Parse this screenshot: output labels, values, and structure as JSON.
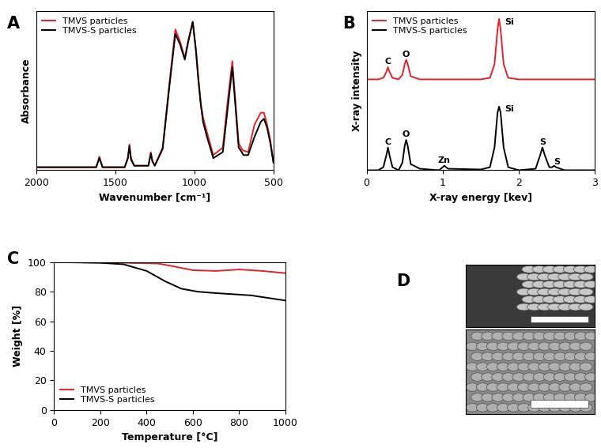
{
  "chart_data": [
    {
      "type": "line",
      "label": "A",
      "x_label": "Wavenumber [cm⁻¹]",
      "y_label": "Absorbance",
      "x": [
        2000,
        1700,
        1620,
        1600,
        1580,
        1440,
        1420,
        1410,
        1400,
        1380,
        1290,
        1275,
        1265,
        1250,
        1200,
        1160,
        1120,
        1090,
        1060,
        1040,
        1010,
        990,
        975,
        960,
        945,
        920,
        880,
        820,
        790,
        760,
        740,
        720,
        700,
        690,
        660,
        620,
        580,
        560,
        540,
        520,
        500
      ],
      "series": [
        {
          "name": "TMVS particles",
          "color": "#e8202a",
          "values": [
            0.02,
            0.02,
            0.02,
            0.09,
            0.02,
            0.02,
            0.08,
            0.17,
            0.08,
            0.03,
            0.03,
            0.12,
            0.06,
            0.03,
            0.15,
            0.55,
            0.93,
            0.85,
            0.74,
            0.85,
            0.98,
            0.8,
            0.62,
            0.45,
            0.35,
            0.25,
            0.1,
            0.15,
            0.45,
            0.72,
            0.45,
            0.18,
            0.14,
            0.13,
            0.12,
            0.3,
            0.38,
            0.38,
            0.3,
            0.2,
            0.05
          ]
        },
        {
          "name": "TMVS-S particles",
          "color": "#000000",
          "values": [
            0.02,
            0.02,
            0.02,
            0.08,
            0.02,
            0.02,
            0.08,
            0.16,
            0.07,
            0.03,
            0.03,
            0.11,
            0.06,
            0.03,
            0.14,
            0.53,
            0.9,
            0.83,
            0.73,
            0.84,
            0.98,
            0.79,
            0.6,
            0.44,
            0.32,
            0.22,
            0.08,
            0.12,
            0.4,
            0.68,
            0.42,
            0.15,
            0.12,
            0.1,
            0.1,
            0.22,
            0.32,
            0.34,
            0.28,
            0.18,
            0.05
          ]
        }
      ],
      "xlim": [
        2000,
        500
      ],
      "xticks": [
        2000,
        1500,
        1000,
        500
      ],
      "ylim": [
        0,
        1.05
      ],
      "tick_labels": "x",
      "legend": "upper left"
    },
    {
      "type": "line",
      "label": "B",
      "x_label": "X-ray energy [kev]",
      "y_label": "X-ray intensity",
      "x": [
        0.0,
        0.15,
        0.22,
        0.26,
        0.28,
        0.3,
        0.34,
        0.42,
        0.47,
        0.5,
        0.52,
        0.54,
        0.58,
        0.7,
        0.95,
        1.0,
        1.02,
        1.07,
        1.5,
        1.62,
        1.68,
        1.72,
        1.74,
        1.76,
        1.8,
        1.86,
        2.0,
        2.22,
        2.28,
        2.31,
        2.34,
        2.4,
        2.44,
        2.46,
        2.49,
        2.6,
        3.0
      ],
      "series": [
        {
          "name": "TMVS particles",
          "color": "#e8202a",
          "values": [
            0.6,
            0.6,
            0.61,
            0.65,
            0.68,
            0.65,
            0.61,
            0.6,
            0.63,
            0.7,
            0.73,
            0.7,
            0.62,
            0.6,
            0.6,
            0.6,
            0.6,
            0.6,
            0.6,
            0.61,
            0.7,
            0.93,
            1.0,
            0.93,
            0.7,
            0.61,
            0.6,
            0.6,
            0.6,
            0.6,
            0.6,
            0.6,
            0.6,
            0.6,
            0.6,
            0.6,
            0.6
          ]
        },
        {
          "name": "TMVS-S particles",
          "color": "#000000",
          "values": [
            0.0,
            0.0,
            0.02,
            0.1,
            0.15,
            0.1,
            0.02,
            0.0,
            0.05,
            0.16,
            0.2,
            0.16,
            0.04,
            0.01,
            0.0,
            0.02,
            0.03,
            0.01,
            0.005,
            0.02,
            0.15,
            0.38,
            0.42,
            0.38,
            0.15,
            0.02,
            0.0,
            0.01,
            0.1,
            0.15,
            0.1,
            0.02,
            0.02,
            0.03,
            0.02,
            0.0,
            0.0
          ]
        }
      ],
      "annotations": [
        {
          "text": "C",
          "x": 0.28,
          "y": 0.69
        },
        {
          "text": "O",
          "x": 0.52,
          "y": 0.74
        },
        {
          "text": "Si",
          "x": 1.88,
          "y": 0.95
        },
        {
          "text": "C",
          "x": 0.28,
          "y": 0.16
        },
        {
          "text": "O",
          "x": 0.52,
          "y": 0.21
        },
        {
          "text": "Zn",
          "x": 1.02,
          "y": 0.04
        },
        {
          "text": "Si",
          "x": 1.88,
          "y": 0.38
        },
        {
          "text": "S",
          "x": 2.31,
          "y": 0.16
        },
        {
          "text": "S",
          "x": 2.5,
          "y": 0.03
        }
      ],
      "xlim": [
        0,
        3
      ],
      "xticks": [
        0,
        1,
        2,
        3
      ],
      "ylim": [
        0,
        1.05
      ],
      "tick_labels": "x",
      "legend": "upper left"
    },
    {
      "type": "line",
      "label": "C",
      "x_label": "Temperature [°C]",
      "y_label": "Weight [%]",
      "series": [
        {
          "name": "TMVS particles",
          "color": "#e8202a",
          "x": [
            0,
            300,
            450,
            520,
            600,
            700,
            800,
            900,
            1000
          ],
          "values": [
            100,
            99.5,
            99,
            97,
            94.5,
            94,
            95,
            94,
            92.5
          ]
        },
        {
          "name": "TMVS-S particles",
          "color": "#000000",
          "x": [
            0,
            200,
            300,
            400,
            480,
            550,
            620,
            700,
            850,
            1000
          ],
          "values": [
            100,
            99.5,
            98.5,
            94,
            87,
            82,
            80,
            79,
            77.5,
            74
          ]
        }
      ],
      "xlim": [
        0,
        1000
      ],
      "xticks": [
        0,
        200,
        400,
        600,
        800,
        1000
      ],
      "ylim": [
        0,
        100
      ],
      "yticks": [
        0,
        20,
        40,
        60,
        80,
        100
      ],
      "legend": "lower left"
    },
    {
      "type": "image",
      "label": "D"
    }
  ]
}
